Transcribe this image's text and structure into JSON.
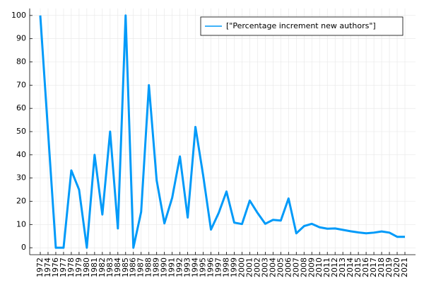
{
  "chart_data": {
    "type": "line",
    "categories": [
      "1972",
      "1974",
      "1976",
      "1977",
      "1978",
      "1979",
      "1980",
      "1981",
      "1982",
      "1983",
      "1984",
      "1985",
      "1986",
      "1987",
      "1988",
      "1989",
      "1990",
      "1991",
      "1992",
      "1993",
      "1994",
      "1995",
      "1996",
      "1997",
      "1998",
      "1999",
      "2000",
      "2001",
      "2002",
      "2003",
      "2004",
      "2005",
      "2006",
      "2007",
      "2008",
      "2009",
      "2010",
      "2011",
      "2012",
      "2013",
      "2014",
      "2015",
      "2016",
      "2017",
      "2018",
      "2019",
      "2020",
      "2021"
    ],
    "series": [
      {
        "name": "[\"Percentage increment new authors\"]",
        "color": "#009af9",
        "values": [
          100,
          50,
          0,
          0,
          33.3,
          25,
          0,
          40,
          14.3,
          50,
          8.3,
          100,
          0,
          15.4,
          70,
          29,
          10.5,
          21.5,
          39.3,
          13,
          52,
          31,
          7.8,
          15,
          24.2,
          10.8,
          10.2,
          20.3,
          15,
          10.3,
          12,
          11.7,
          21.2,
          6.2,
          9.3,
          10.3,
          8.8,
          8.2,
          8.3,
          7.7,
          7.1,
          6.6,
          6.2,
          6.5,
          7,
          6.5,
          4.7,
          4.7
        ]
      }
    ],
    "ylim": [
      -3,
      103
    ],
    "yticks": [
      0,
      10,
      20,
      30,
      40,
      50,
      60,
      70,
      80,
      90,
      100
    ],
    "grid": true,
    "legend": "top-right"
  }
}
